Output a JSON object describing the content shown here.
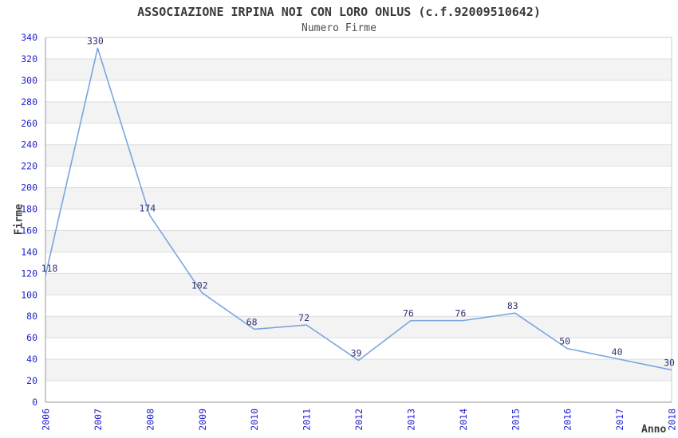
{
  "chart_data": {
    "type": "line",
    "title": "ASSOCIAZIONE IRPINA NOI CON LORO ONLUS (c.f.92009510642)",
    "subtitle": "Numero Firme",
    "xlabel": "Anno",
    "ylabel": "Firme",
    "categories": [
      "2006",
      "2007",
      "2008",
      "2009",
      "2010",
      "2011",
      "2012",
      "2013",
      "2014",
      "2015",
      "2016",
      "2017",
      "2018"
    ],
    "values": [
      118,
      330,
      174,
      102,
      68,
      72,
      39,
      76,
      76,
      83,
      50,
      40,
      30
    ],
    "data_labels_shown": true,
    "ylim": [
      0,
      340
    ],
    "ytick_step": 20,
    "grid": true,
    "band_pattern": "alternating horizontal bands every 20 units",
    "legend": "none",
    "colors": {
      "line": "#7aa5e0",
      "tick_label": "#2222cc",
      "data_label": "#333377",
      "band": "#f3f3f3",
      "gridline": "#dddddd",
      "axis_main": "#999999",
      "axis_secondary": "#cccccc",
      "title": "#3a3a3a",
      "subtitle": "#4d4d4d"
    }
  }
}
